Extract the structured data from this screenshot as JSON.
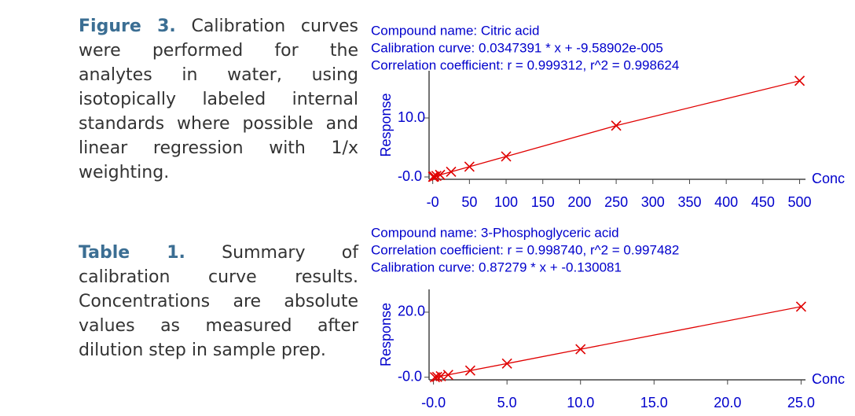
{
  "text": {
    "figure_caption": {
      "label": "Figure 3.",
      "body": "Calibration curves were performed for the analytes in water, using isotopically labeled internal standards where possible and linear regression with 1/x weighting."
    },
    "table_caption": {
      "label": "Table 1.",
      "body": "Summary of calibration curve results. Concentrations are absolute values as measured after dilution step in sample prep."
    }
  },
  "chart_data": [
    {
      "type": "line",
      "header": [
        "Compound name: Citric acid",
        "Calibration curve: 0.0347391 * x + -9.58902e-005",
        "Correlation coefficient: r = 0.999312, r^2 = 0.998624"
      ],
      "ylabel": "Response",
      "xlabel": "Conc",
      "x": [
        0.5,
        1,
        2,
        5,
        10,
        25,
        50,
        100,
        250,
        500
      ],
      "series": [
        {
          "color": "#e00000",
          "values": [
            0.02,
            0.03,
            0.07,
            0.17,
            0.35,
            0.87,
            1.74,
            3.47,
            8.7,
            16.3
          ]
        }
      ],
      "xlim": [
        -5,
        508
      ],
      "ylim": [
        -0.4,
        18
      ],
      "xticks": [
        {
          "value": 0,
          "label": "-0"
        },
        50,
        100,
        150,
        200,
        250,
        300,
        350,
        400,
        450,
        500
      ],
      "yticks": [
        {
          "value": 0,
          "label": "-0.0"
        },
        {
          "value": 10,
          "label": "10.0"
        }
      ]
    },
    {
      "type": "line",
      "header": [
        "Compound name: 3-Phosphoglyceric acid",
        "Correlation coefficient: r = 0.998740, r^2 = 0.997482",
        "Calibration curve: 0.87279 * x + -0.130081"
      ],
      "ylabel": "Response",
      "xlabel": "Conc",
      "x": [
        0.1,
        0.25,
        0.5,
        1,
        2.5,
        5,
        10,
        25
      ],
      "series": [
        {
          "color": "#e00000",
          "values": [
            0.0,
            0.09,
            0.31,
            0.74,
            2.05,
            4.2,
            8.6,
            21.7
          ]
        }
      ],
      "xlim": [
        -0.3,
        25.3
      ],
      "ylim": [
        -0.8,
        27
      ],
      "xticks": [
        {
          "value": 0,
          "label": "-0.0"
        },
        {
          "value": 5,
          "label": "5.0"
        },
        {
          "value": 10,
          "label": "10.0"
        },
        {
          "value": 15,
          "label": "15.0"
        },
        {
          "value": 20,
          "label": "20.0"
        },
        {
          "value": 25,
          "label": "25.0"
        }
      ],
      "yticks": [
        {
          "value": 0,
          "label": "-0.0"
        },
        {
          "value": 20,
          "label": "20.0"
        }
      ]
    }
  ]
}
